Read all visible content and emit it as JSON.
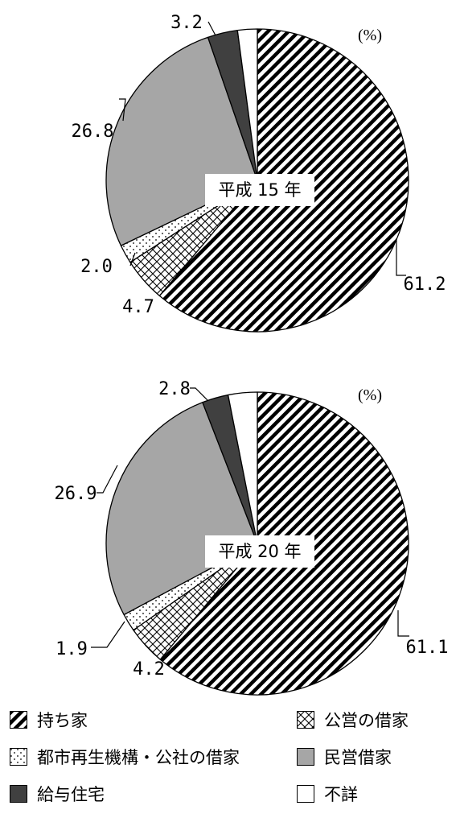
{
  "chart_data": [
    {
      "type": "pie",
      "unit": "(%)",
      "center_label": "平成 15 年",
      "slices": [
        {
          "category": "持ち家",
          "value": 61.2,
          "label": "61.2"
        },
        {
          "category": "公営の借家",
          "value": 4.7,
          "label": "4.7"
        },
        {
          "category": "都市再生機構・公社の借家",
          "value": 2.0,
          "label": "2.0"
        },
        {
          "category": "民営借家",
          "value": 26.8,
          "label": "26.8"
        },
        {
          "category": "給与住宅",
          "value": 3.2,
          "label": "3.2"
        },
        {
          "category": "不詳",
          "value": 2.1,
          "label": ""
        }
      ]
    },
    {
      "type": "pie",
      "unit": "(%)",
      "center_label": "平成 20 年",
      "slices": [
        {
          "category": "持ち家",
          "value": 61.1,
          "label": "61.1"
        },
        {
          "category": "公営の借家",
          "value": 4.2,
          "label": "4.2"
        },
        {
          "category": "都市再生機構・公社の借家",
          "value": 1.9,
          "label": "1.9"
        },
        {
          "category": "民営借家",
          "value": 26.9,
          "label": "26.9"
        },
        {
          "category": "給与住宅",
          "value": 2.8,
          "label": "2.8"
        },
        {
          "category": "不詳",
          "value": 3.1,
          "label": ""
        }
      ]
    }
  ],
  "legend": [
    {
      "label": "持ち家",
      "pattern": "diagonal-hatch"
    },
    {
      "label": "公営の借家",
      "pattern": "brick-hatch"
    },
    {
      "label": "都市再生機構・公社の借家",
      "pattern": "dots"
    },
    {
      "label": "民営借家",
      "pattern": "gray",
      "color": "#a6a6a6"
    },
    {
      "label": "給与住宅",
      "pattern": "dark",
      "color": "#404040"
    },
    {
      "label": "不詳",
      "pattern": "white",
      "color": "#ffffff"
    }
  ]
}
